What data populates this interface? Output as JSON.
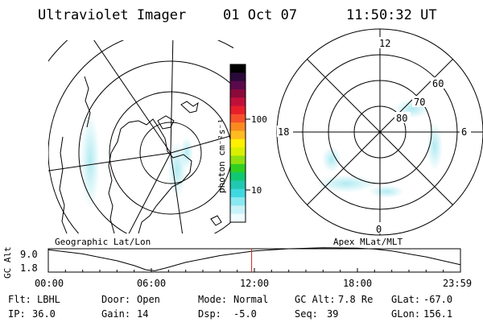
{
  "header": {
    "title": "Ultraviolet Imager",
    "date": "01 Oct 07",
    "time": "11:50:32 UT"
  },
  "colorbar": {
    "label": "photon cm⁻²s⁻¹",
    "ticks": [
      "100",
      "10"
    ],
    "colors": [
      "#000000",
      "#2a0a3a",
      "#5a0a4a",
      "#8a0a3a",
      "#c0103a",
      "#e81e2a",
      "#f5502a",
      "#fa8a20",
      "#ffbb20",
      "#fff000",
      "#d8f000",
      "#90e010",
      "#30d020",
      "#10c870",
      "#20c8b0",
      "#40d8e0",
      "#8ae8f0",
      "#c8f2f8",
      "#f0fcff"
    ]
  },
  "map_geo": {
    "label": "Geographic Lat/Lon"
  },
  "map_mag": {
    "label": "Apex MLat/MLT",
    "mlt_labels": {
      "top": "12",
      "left": "18",
      "right": "6",
      "bottom": "0"
    },
    "lat_labels": [
      "80",
      "70",
      "60"
    ]
  },
  "chart_data": {
    "type": "line",
    "ylabel": "GC Alt",
    "yticks": [
      "9.0",
      "1.8"
    ],
    "ylim": [
      1.8,
      9.0
    ],
    "xticks": [
      "00:00",
      "06:00",
      "12:00",
      "18:00",
      "23:59"
    ],
    "xlim": [
      0,
      24
    ],
    "current_time": 11.84,
    "current_time_color": "#cc2222",
    "series": [
      {
        "x": [
          0,
          2,
          4,
          5,
          5.7,
          6.2,
          7,
          8,
          10,
          12,
          14,
          16,
          18,
          19,
          20,
          22,
          23.98
        ],
        "values": [
          8.7,
          7.4,
          5.3,
          3.8,
          2.5,
          2.2,
          3.3,
          4.8,
          6.9,
          8.3,
          9.0,
          9.3,
          9.2,
          8.9,
          8.3,
          6.5,
          4.1
        ]
      }
    ]
  },
  "status": {
    "row1": [
      {
        "label": "Flt:",
        "value": "LBHL"
      },
      {
        "label": "Door:",
        "value": "Open"
      },
      {
        "label": "Mode:",
        "value": "Normal"
      },
      {
        "label": "GC Alt:",
        "value": "7.8 Re"
      },
      {
        "label": "GLat:",
        "value": "-67.0"
      }
    ],
    "row2": [
      {
        "label": "IP:",
        "value": "36.0"
      },
      {
        "label": "Gain:",
        "value": "14"
      },
      {
        "label": "Dsp:",
        "value": "-5.0"
      },
      {
        "label": "Seq:",
        "value": "39"
      },
      {
        "label": "GLon:",
        "value": "156.1"
      }
    ]
  }
}
